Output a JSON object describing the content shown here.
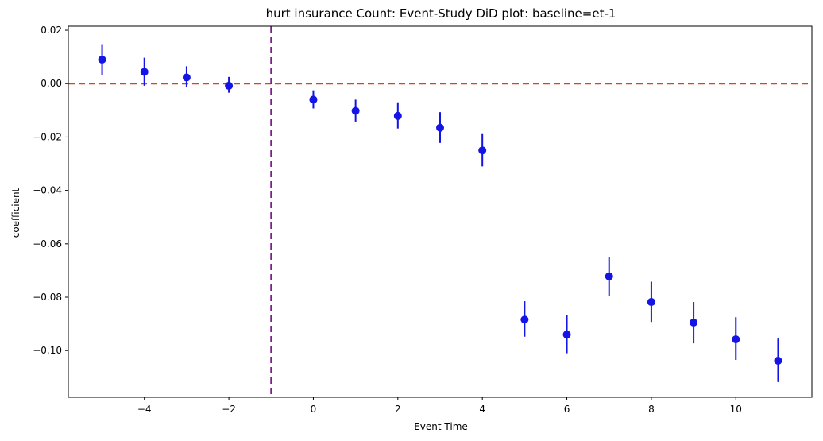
{
  "chart_data": {
    "type": "scatter",
    "title": "hurt insurance Count: Event-Study DiD plot: baseline=et-1",
    "xlabel": "Event Time",
    "ylabel": "coefficient",
    "xlim": [
      -5.8,
      11.8
    ],
    "ylim": [
      -0.1175,
      0.0215
    ],
    "xticks": [
      -4,
      -2,
      0,
      2,
      4,
      6,
      8,
      10
    ],
    "xtick_labels": [
      "−4",
      "−2",
      "0",
      "2",
      "4",
      "6",
      "8",
      "10"
    ],
    "yticks": [
      0.02,
      0.0,
      -0.02,
      -0.04,
      -0.06,
      -0.08,
      -0.1
    ],
    "ytick_labels": [
      "0.02",
      "0.00",
      "−0.02",
      "−0.04",
      "−0.06",
      "−0.08",
      "−0.10"
    ],
    "grid": false,
    "reference_lines": {
      "horizontal_y": 0.0,
      "horizontal_color": "#d2461f",
      "vertical_x": -1,
      "vertical_color": "#7b1f8c"
    },
    "series": [
      {
        "color": "#1414e6",
        "points": [
          {
            "x": -5,
            "y": 0.009,
            "lo": 0.0033,
            "hi": 0.0145
          },
          {
            "x": -4,
            "y": 0.0044,
            "lo": -0.0008,
            "hi": 0.0097
          },
          {
            "x": -3,
            "y": 0.0023,
            "lo": -0.0014,
            "hi": 0.0065
          },
          {
            "x": -2,
            "y": -0.0008,
            "lo": -0.0034,
            "hi": 0.0025
          },
          {
            "x": 0,
            "y": -0.006,
            "lo": -0.0093,
            "hi": -0.0025
          },
          {
            "x": 1,
            "y": -0.0102,
            "lo": -0.0142,
            "hi": -0.006
          },
          {
            "x": 2,
            "y": -0.0121,
            "lo": -0.0168,
            "hi": -0.007
          },
          {
            "x": 3,
            "y": -0.0165,
            "lo": -0.0222,
            "hi": -0.0107
          },
          {
            "x": 4,
            "y": -0.025,
            "lo": -0.031,
            "hi": -0.0189
          },
          {
            "x": 5,
            "y": -0.0884,
            "lo": -0.0948,
            "hi": -0.0815
          },
          {
            "x": 6,
            "y": -0.094,
            "lo": -0.101,
            "hi": -0.0866
          },
          {
            "x": 7,
            "y": -0.0722,
            "lo": -0.0795,
            "hi": -0.065
          },
          {
            "x": 8,
            "y": -0.0818,
            "lo": -0.0893,
            "hi": -0.0742
          },
          {
            "x": 9,
            "y": -0.0895,
            "lo": -0.0973,
            "hi": -0.0818
          },
          {
            "x": 10,
            "y": -0.0958,
            "lo": -0.1035,
            "hi": -0.0875
          },
          {
            "x": 11,
            "y": -0.1038,
            "lo": -0.1118,
            "hi": -0.0955
          }
        ]
      }
    ]
  }
}
